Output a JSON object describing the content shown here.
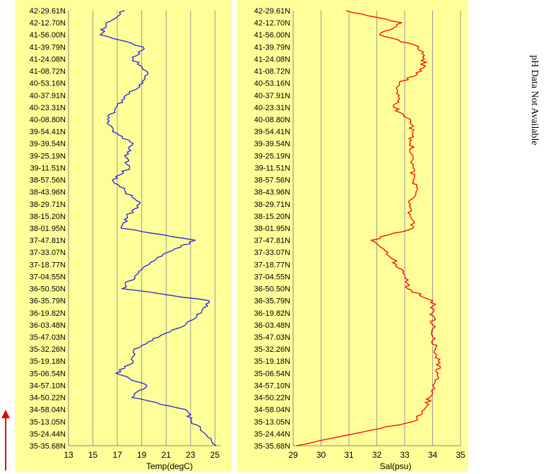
{
  "page": {
    "side_note": "pH Data Not Available"
  },
  "chart_data": [
    {
      "type": "line",
      "xlabel": "Temp(degC)",
      "ylabel": "",
      "xlim": [
        13,
        25.5
      ],
      "xticks": [
        13,
        15,
        17,
        19,
        21,
        23,
        25
      ],
      "grid": true,
      "series": [
        {
          "color": "#2222dd",
          "values": [
            {
              "y": "35-35.68N",
              "x": 25.1
            },
            {
              "y": "35-24.44N",
              "x": 24.2
            },
            {
              "y": "35-13.05N",
              "x": 23.1
            },
            {
              "y": "34-58.04N",
              "x": 22.6
            },
            {
              "y": "34-50.22N",
              "x": 18.2
            },
            {
              "y": "34-57.10N",
              "x": 19.4
            },
            {
              "y": "35-06.54N",
              "x": 16.9
            },
            {
              "y": "35-19.18N",
              "x": 18.3
            },
            {
              "y": "35-32.26N",
              "x": 18.4
            },
            {
              "y": "35-47.03N",
              "x": 20.4
            },
            {
              "y": "36-03.48N",
              "x": 22.6
            },
            {
              "y": "36-19.82N",
              "x": 23.9
            },
            {
              "y": "36-35.79N",
              "x": 24.5
            },
            {
              "y": "36-50.50N",
              "x": 17.4
            },
            {
              "y": "37-04.55N",
              "x": 18.4
            },
            {
              "y": "37-18.77N",
              "x": 19.6
            },
            {
              "y": "37-33.07N",
              "x": 21.1
            },
            {
              "y": "37-47.81N",
              "x": 23.4
            },
            {
              "y": "38-01.95N",
              "x": 17.3
            },
            {
              "y": "38-15.20N",
              "x": 17.8
            },
            {
              "y": "38-29.71N",
              "x": 18.8
            },
            {
              "y": "38-43.96N",
              "x": 17.7
            },
            {
              "y": "38-57.56N",
              "x": 16.6
            },
            {
              "y": "39-11.51N",
              "x": 18.0
            },
            {
              "y": "39-25.19N",
              "x": 17.6
            },
            {
              "y": "39-39.54N",
              "x": 18.3
            },
            {
              "y": "39-54.41N",
              "x": 16.6
            },
            {
              "y": "40-08.80N",
              "x": 16.2
            },
            {
              "y": "40-23.31N",
              "x": 16.9
            },
            {
              "y": "40-37.91N",
              "x": 17.7
            },
            {
              "y": "40-53.16N",
              "x": 19.1
            },
            {
              "y": "41-08.72N",
              "x": 19.4
            },
            {
              "y": "41-24.08N",
              "x": 18.3
            },
            {
              "y": "41-39.79N",
              "x": 19.1
            },
            {
              "y": "41-56.00N",
              "x": 15.6
            },
            {
              "y": "42-12.70N",
              "x": 16.1
            },
            {
              "y": "42-29.61N",
              "x": 17.6
            }
          ]
        }
      ]
    },
    {
      "type": "line",
      "xlabel": "Sal(psu)",
      "ylabel": "",
      "xlim": [
        29,
        35
      ],
      "xticks": [
        29,
        30,
        31,
        32,
        33,
        34,
        35
      ],
      "grid": true,
      "series": [
        {
          "color": "#ff0000",
          "values": [
            {
              "y": "35-35.68N",
              "x": 29.1
            },
            {
              "y": "35-24.44N",
              "x": 31.2
            },
            {
              "y": "35-13.05N",
              "x": 33.3
            },
            {
              "y": "34-58.04N",
              "x": 33.7
            },
            {
              "y": "34-50.22N",
              "x": 33.9
            },
            {
              "y": "34-57.10N",
              "x": 34.0
            },
            {
              "y": "35-06.54N",
              "x": 34.2
            },
            {
              "y": "35-19.18N",
              "x": 34.2
            },
            {
              "y": "35-32.26N",
              "x": 34.1
            },
            {
              "y": "35-47.03N",
              "x": 34.0
            },
            {
              "y": "36-03.48N",
              "x": 34.0
            },
            {
              "y": "36-19.82N",
              "x": 34.0
            },
            {
              "y": "36-35.79N",
              "x": 34.0
            },
            {
              "y": "36-50.50N",
              "x": 33.1
            },
            {
              "y": "37-04.55N",
              "x": 33.0
            },
            {
              "y": "37-18.77N",
              "x": 32.7
            },
            {
              "y": "37-33.07N",
              "x": 32.4
            },
            {
              "y": "37-47.81N",
              "x": 31.8
            },
            {
              "y": "38-01.95N",
              "x": 33.3
            },
            {
              "y": "38-15.20N",
              "x": 33.2
            },
            {
              "y": "38-29.71N",
              "x": 33.2
            },
            {
              "y": "38-43.96N",
              "x": 33.4
            },
            {
              "y": "38-57.56N",
              "x": 33.3
            },
            {
              "y": "39-11.51N",
              "x": 33.3
            },
            {
              "y": "39-25.19N",
              "x": 33.3
            },
            {
              "y": "39-39.54N",
              "x": 33.2
            },
            {
              "y": "39-54.41N",
              "x": 33.3
            },
            {
              "y": "40-08.80N",
              "x": 33.2
            },
            {
              "y": "40-23.31N",
              "x": 32.6
            },
            {
              "y": "40-37.91N",
              "x": 32.8
            },
            {
              "y": "40-53.16N",
              "x": 32.8
            },
            {
              "y": "41-08.72N",
              "x": 33.6
            },
            {
              "y": "41-24.08N",
              "x": 33.7
            },
            {
              "y": "41-39.79N",
              "x": 33.5
            },
            {
              "y": "41-56.00N",
              "x": 32.1
            },
            {
              "y": "42-12.70N",
              "x": 32.9
            },
            {
              "y": "42-29.61N",
              "x": 30.9
            }
          ]
        }
      ]
    }
  ],
  "colors": {
    "plot_background": "#ffff99",
    "temp_line": "#2222dd",
    "sal_line": "#ff0000",
    "arrow": "#ee0000"
  }
}
